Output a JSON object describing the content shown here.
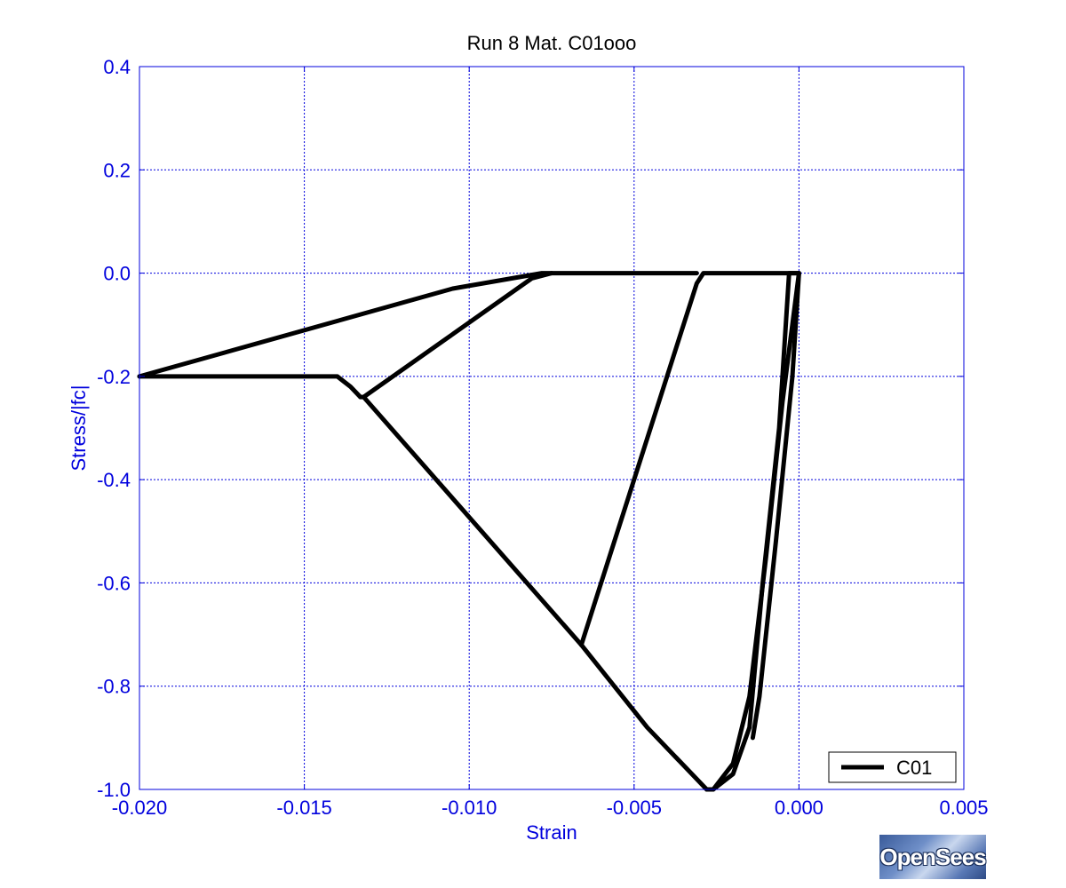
{
  "chart_data": {
    "type": "line",
    "title": "Run 8    Mat. C01ooo",
    "xlabel": "Strain",
    "ylabel": "Stress/|fc|",
    "xlim": [
      -0.02,
      0.005
    ],
    "ylim": [
      -1.0,
      0.4
    ],
    "xticks": [
      -0.02,
      -0.015,
      -0.01,
      -0.005,
      0.0,
      0.005
    ],
    "xtick_labels": [
      "-0.020",
      "-0.015",
      "-0.010",
      "-0.005",
      "0.000",
      "0.005"
    ],
    "yticks": [
      0.4,
      0.2,
      0.0,
      -0.2,
      -0.4,
      -0.6,
      -0.8,
      -1.0
    ],
    "ytick_labels": [
      "0.4",
      "0.2",
      "0.0",
      "-0.2",
      "-0.4",
      "-0.6",
      "-0.8",
      "-1.0"
    ],
    "grid": true,
    "legend_position": "bottom-right",
    "series": [
      {
        "name": "C01",
        "color": "#000000",
        "segments": [
          [
            [
              0.0,
              0.0
            ],
            [
              -0.0005,
              -0.25
            ],
            [
              -0.001,
              -0.55
            ],
            [
              -0.0015,
              -0.82
            ],
            [
              -0.002,
              -0.95
            ],
            [
              -0.0026,
              -1.0
            ],
            [
              -0.0028,
              -1.0
            ]
          ],
          [
            [
              -0.0028,
              -1.0
            ],
            [
              -0.0046,
              -0.88
            ],
            [
              -0.0066,
              -0.72
            ]
          ],
          [
            [
              -0.0026,
              -1.0
            ],
            [
              -0.002,
              -0.97
            ],
            [
              -0.0015,
              -0.88
            ],
            [
              -0.0011,
              -0.6
            ],
            [
              -0.0006,
              -0.3
            ],
            [
              -0.0003,
              0.0
            ],
            [
              0.0,
              0.0
            ]
          ],
          [
            [
              0.0,
              0.0
            ],
            [
              -0.0002,
              -0.2
            ],
            [
              -0.0007,
              -0.52
            ],
            [
              -0.0012,
              -0.82
            ],
            [
              -0.0014,
              -0.9
            ]
          ],
          [
            [
              -0.0066,
              -0.72
            ],
            [
              -0.0031,
              -0.02
            ],
            [
              -0.0029,
              0.0
            ],
            [
              0.0,
              0.0
            ]
          ],
          [
            [
              -0.0066,
              -0.72
            ],
            [
              -0.0132,
              -0.24
            ],
            [
              -0.0133,
              -0.24
            ]
          ],
          [
            [
              -0.0132,
              -0.24
            ],
            [
              -0.0081,
              -0.01
            ],
            [
              -0.0075,
              0.0
            ],
            [
              -0.0031,
              0.0
            ]
          ],
          [
            [
              -0.0133,
              -0.24
            ],
            [
              -0.0136,
              -0.22
            ],
            [
              -0.014,
              -0.2
            ],
            [
              -0.02,
              -0.2
            ]
          ],
          [
            [
              -0.02,
              -0.2
            ],
            [
              -0.0105,
              -0.03
            ],
            [
              -0.0078,
              0.0
            ],
            [
              -0.0075,
              0.0
            ]
          ]
        ]
      }
    ]
  },
  "logo": {
    "text": "OpenSees"
  }
}
